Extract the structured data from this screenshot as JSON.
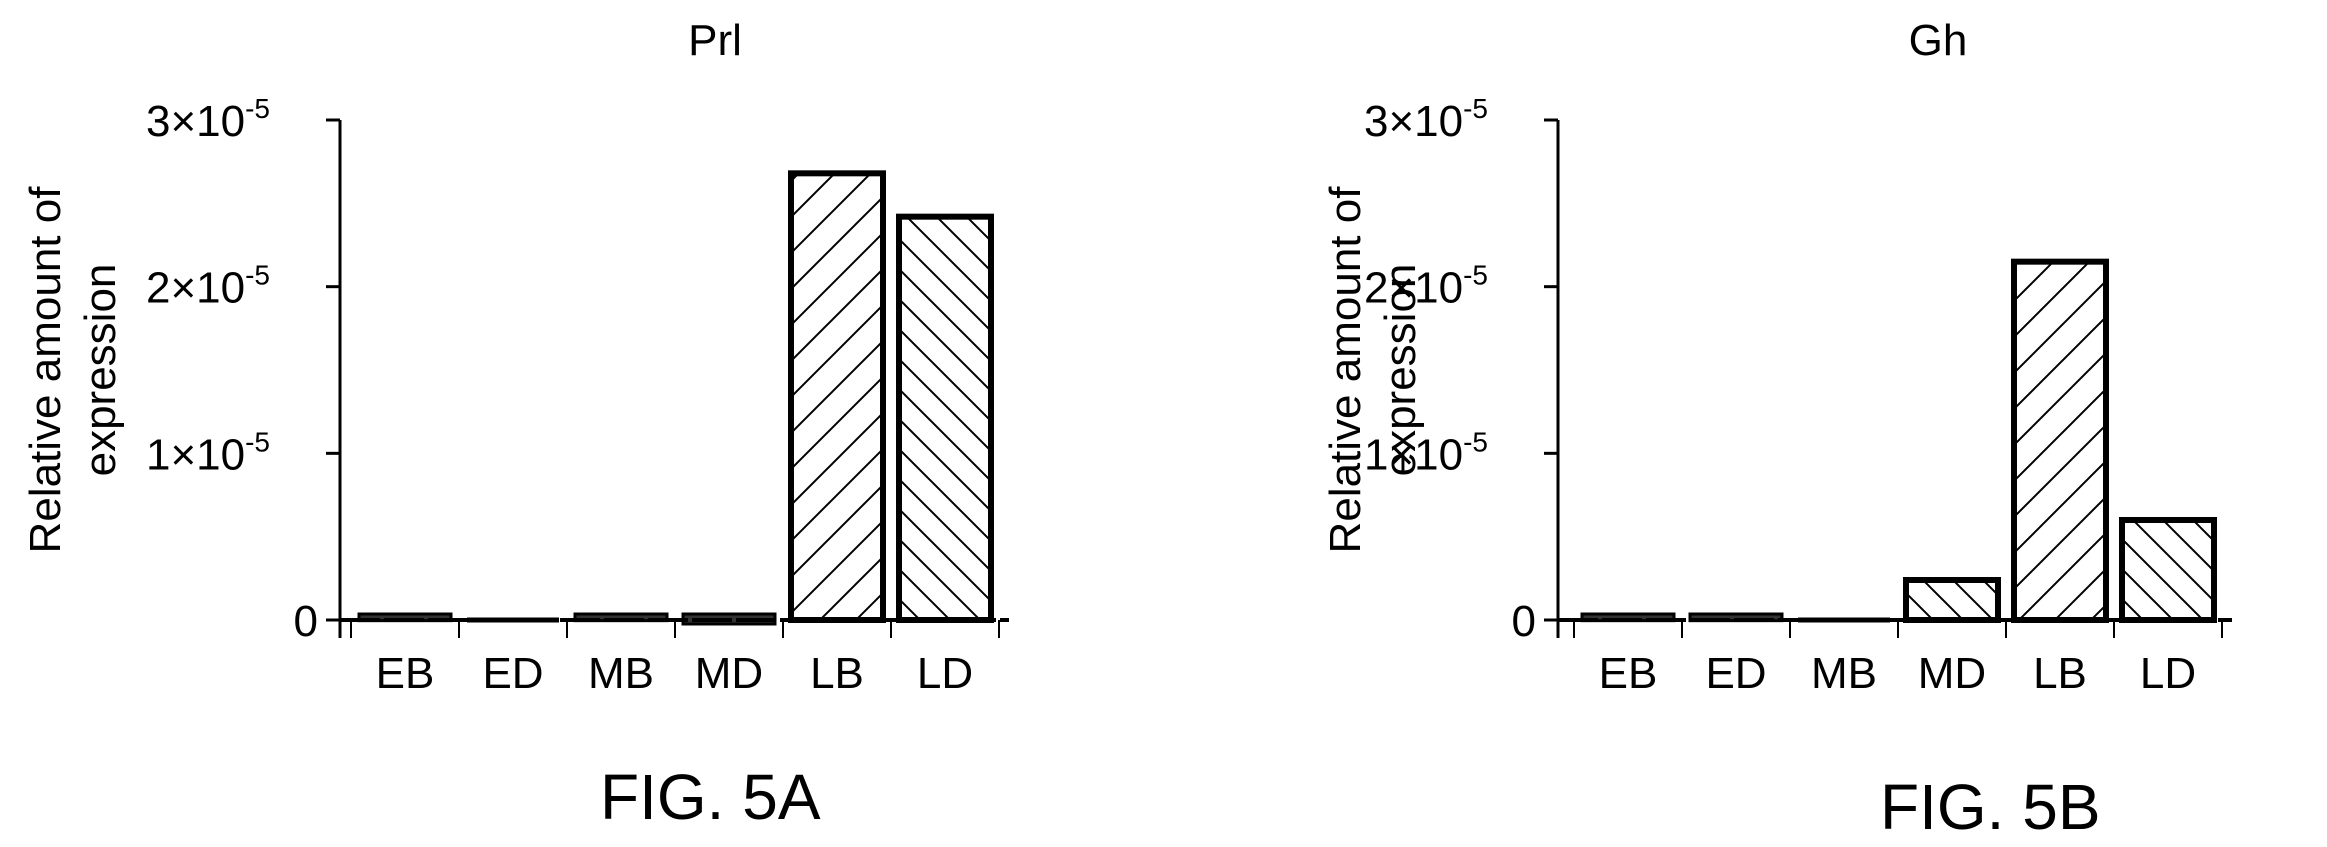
{
  "chart_data": [
    {
      "type": "bar",
      "title": "Prl",
      "ylabel": [
        "Relative amount of",
        "expression"
      ],
      "xlabel": "",
      "categories": [
        "EB",
        "ED",
        "MB",
        "MD",
        "LB",
        "LD"
      ],
      "values": [
        4e-07,
        0.0,
        4e-07,
        6e-07,
        2.68e-05,
        2.42e-05
      ],
      "patterns": [
        "dense",
        "none",
        "dense",
        "dense",
        "forward-hatch",
        "back-hatch"
      ],
      "ylim": [
        0,
        3e-05
      ],
      "yticks": [
        {
          "value": 0,
          "base": "0",
          "exp": ""
        },
        {
          "value": 1e-05,
          "base": "1×10",
          "exp": "-5"
        },
        {
          "value": 2e-05,
          "base": "2×10",
          "exp": "-5"
        },
        {
          "value": 3e-05,
          "base": "3×10",
          "exp": "-5"
        }
      ],
      "grid": false,
      "caption": "FIG. 5A"
    },
    {
      "type": "bar",
      "title": "Gh",
      "ylabel": [
        "Relative amount of",
        "expression"
      ],
      "xlabel": "",
      "categories": [
        "EB",
        "ED",
        "MB",
        "MD",
        "LB",
        "LD"
      ],
      "values": [
        4e-07,
        4e-07,
        0.0,
        2.4e-06,
        2.15e-05,
        6e-06
      ],
      "patterns": [
        "dense",
        "dense",
        "none",
        "back-hatch",
        "forward-hatch",
        "back-hatch"
      ],
      "ylim": [
        0,
        3e-05
      ],
      "yticks": [
        {
          "value": 0,
          "base": "0",
          "exp": ""
        },
        {
          "value": 1e-05,
          "base": "1×10",
          "exp": "-5"
        },
        {
          "value": 2e-05,
          "base": "2×10",
          "exp": "-5"
        },
        {
          "value": 3e-05,
          "base": "3×10",
          "exp": "-5"
        }
      ],
      "grid": false,
      "caption": "FIG. 5B"
    }
  ],
  "colors": {
    "stroke": "#000000",
    "background": "#ffffff"
  }
}
